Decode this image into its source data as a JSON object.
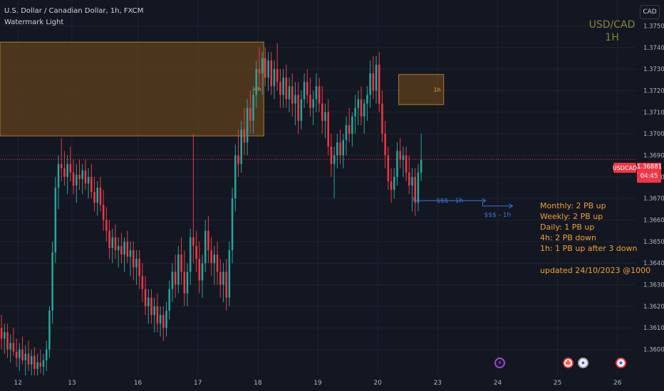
{
  "legend": {
    "symbol_line": "U.S. Dollar / Canadian Dollar, 1h, FXCM",
    "indicator": "Watermark Light"
  },
  "watermark": {
    "line1": "USD/CAD",
    "line2": "1H"
  },
  "currency_button": "CAD",
  "price_tag": {
    "symbol": "USDCAD",
    "price": "1.36881",
    "countdown": "04:45"
  },
  "notes": [
    "Monthly: 2 PB up",
    "Weekly: 2 PB up",
    "Daily: 1 PB up",
    "4h: 2 PB down",
    "1h: 1 PB up after 3 down"
  ],
  "updated": "updated 24/10/2023 @1000",
  "zones": [
    {
      "label": "4h",
      "x_from": 0,
      "x_to": 88,
      "y_from": 1.3699,
      "y_to": 1.37425
    },
    {
      "label": "1h",
      "x_from": 133,
      "x_to": 148,
      "y_from": 1.37135,
      "y_to": 1.37275
    }
  ],
  "liquidity": [
    {
      "label": "$$$ - 1h",
      "x_from": 138,
      "x_to": 162,
      "y": 1.3669
    },
    {
      "label": "$$$ - 1h",
      "x_from": 161,
      "x_to": 171,
      "y": 1.36665
    }
  ],
  "events": [
    {
      "name": "lightning-event",
      "glyph": "⚡"
    },
    {
      "name": "canada-event",
      "glyph": "🍁"
    },
    {
      "name": "us-event",
      "glyph": "★"
    },
    {
      "name": "us-event-2",
      "glyph": "★"
    }
  ],
  "colors": {
    "up": "#26a69a",
    "down": "#f23645",
    "zone": "#7a4f1a",
    "zone_border": "#b07b2c",
    "liquidity": "#3a74d6",
    "notes": "#f0a030",
    "grid": "#1f2330",
    "bg": "#131722"
  },
  "chart_data": {
    "type": "candlestick",
    "title": "U.S. Dollar / Canadian Dollar, 1h, FXCM",
    "x_axis": {
      "labels": [
        "12",
        "13",
        "16",
        "17",
        "18",
        "19",
        "20",
        "23",
        "24",
        "25",
        "26"
      ],
      "positions": [
        6,
        24,
        46,
        66,
        86,
        106,
        126,
        146,
        166,
        186,
        206
      ],
      "range": [
        0,
        212
      ]
    },
    "y_axis": {
      "ticks": [
        "1.37500",
        "1.37400",
        "1.37300",
        "1.37200",
        "1.37100",
        "1.37000",
        "1.36900",
        "1.36800",
        "1.36700",
        "1.36600",
        "1.36500",
        "1.36400",
        "1.36300",
        "1.36200",
        "1.36100",
        "1.36000"
      ],
      "range": [
        1.3588,
        1.3762
      ]
    },
    "last_price": 1.36881,
    "grid": true,
    "candles": [
      [
        1.361,
        1.3616,
        1.36,
        1.3605
      ],
      [
        1.3605,
        1.3612,
        1.3598,
        1.3608
      ],
      [
        1.3608,
        1.3612,
        1.3596,
        1.36
      ],
      [
        1.36,
        1.3607,
        1.3594,
        1.3603
      ],
      [
        1.3603,
        1.361,
        1.3597,
        1.3599
      ],
      [
        1.3599,
        1.3605,
        1.3592,
        1.3596
      ],
      [
        1.3596,
        1.3603,
        1.359,
        1.36
      ],
      [
        1.36,
        1.3606,
        1.3593,
        1.3595
      ],
      [
        1.3595,
        1.3602,
        1.3588,
        1.3598
      ],
      [
        1.3598,
        1.3604,
        1.359,
        1.3593
      ],
      [
        1.3593,
        1.36,
        1.3588,
        1.3597
      ],
      [
        1.3597,
        1.3601,
        1.3588,
        1.3591
      ],
      [
        1.3591,
        1.3598,
        1.3586,
        1.3594
      ],
      [
        1.3594,
        1.36,
        1.3589,
        1.3592
      ],
      [
        1.3592,
        1.3598,
        1.3586,
        1.3595
      ],
      [
        1.3595,
        1.3604,
        1.359,
        1.36
      ],
      [
        1.36,
        1.362,
        1.3596,
        1.3618
      ],
      [
        1.3618,
        1.365,
        1.3612,
        1.3645
      ],
      [
        1.3645,
        1.368,
        1.364,
        1.3675
      ],
      [
        1.3675,
        1.369,
        1.3665,
        1.3686
      ],
      [
        1.3686,
        1.3698,
        1.3678,
        1.3684
      ],
      [
        1.3684,
        1.3692,
        1.3676,
        1.368
      ],
      [
        1.368,
        1.369,
        1.3672,
        1.3686
      ],
      [
        1.3686,
        1.3694,
        1.3678,
        1.3682
      ],
      [
        1.3682,
        1.3688,
        1.3672,
        1.3676
      ],
      [
        1.3676,
        1.3686,
        1.3668,
        1.3681
      ],
      [
        1.3681,
        1.3688,
        1.3674,
        1.3679
      ],
      [
        1.3679,
        1.3686,
        1.3672,
        1.3683
      ],
      [
        1.3683,
        1.3688,
        1.3674,
        1.3677
      ],
      [
        1.3677,
        1.3684,
        1.367,
        1.368
      ],
      [
        1.368,
        1.3686,
        1.367,
        1.3673
      ],
      [
        1.3673,
        1.368,
        1.3664,
        1.3668
      ],
      [
        1.3668,
        1.3678,
        1.3662,
        1.3675
      ],
      [
        1.3675,
        1.368,
        1.3664,
        1.3667
      ],
      [
        1.3667,
        1.3674,
        1.3655,
        1.366
      ],
      [
        1.366,
        1.3666,
        1.365,
        1.3655
      ],
      [
        1.3655,
        1.366,
        1.3642,
        1.3647
      ],
      [
        1.3647,
        1.3656,
        1.364,
        1.3652
      ],
      [
        1.3652,
        1.3658,
        1.3642,
        1.3646
      ],
      [
        1.3646,
        1.3652,
        1.3638,
        1.3648
      ],
      [
        1.3648,
        1.3654,
        1.364,
        1.3644
      ],
      [
        1.3644,
        1.3652,
        1.3636,
        1.365
      ],
      [
        1.365,
        1.3655,
        1.364,
        1.3643
      ],
      [
        1.3643,
        1.365,
        1.3634,
        1.3646
      ],
      [
        1.3646,
        1.365,
        1.3632,
        1.3638
      ],
      [
        1.3638,
        1.3646,
        1.363,
        1.3642
      ],
      [
        1.3642,
        1.3646,
        1.3628,
        1.3634
      ],
      [
        1.3634,
        1.364,
        1.3622,
        1.3628
      ],
      [
        1.3628,
        1.3634,
        1.3616,
        1.362
      ],
      [
        1.362,
        1.3628,
        1.3612,
        1.3624
      ],
      [
        1.3624,
        1.3628,
        1.3612,
        1.3616
      ],
      [
        1.3616,
        1.3624,
        1.3608,
        1.362
      ],
      [
        1.362,
        1.3626,
        1.3608,
        1.3612
      ],
      [
        1.3612,
        1.362,
        1.3606,
        1.3616
      ],
      [
        1.3616,
        1.362,
        1.3604,
        1.361
      ],
      [
        1.361,
        1.3622,
        1.3606,
        1.3618
      ],
      [
        1.3618,
        1.3632,
        1.3614,
        1.3628
      ],
      [
        1.3628,
        1.364,
        1.3622,
        1.3636
      ],
      [
        1.3636,
        1.3644,
        1.3624,
        1.363
      ],
      [
        1.363,
        1.3648,
        1.3626,
        1.3644
      ],
      [
        1.3644,
        1.3652,
        1.363,
        1.3636
      ],
      [
        1.3636,
        1.3646,
        1.362,
        1.3626
      ],
      [
        1.3626,
        1.364,
        1.362,
        1.3636
      ],
      [
        1.3636,
        1.3656,
        1.363,
        1.3652
      ],
      [
        1.3652,
        1.37,
        1.364,
        1.3648
      ],
      [
        1.3648,
        1.3655,
        1.3636,
        1.3642
      ],
      [
        1.3642,
        1.365,
        1.3626,
        1.3632
      ],
      [
        1.3632,
        1.3644,
        1.3624,
        1.364
      ],
      [
        1.364,
        1.366,
        1.3636,
        1.3655
      ],
      [
        1.3655,
        1.3662,
        1.364,
        1.3646
      ],
      [
        1.3646,
        1.3652,
        1.3634,
        1.364
      ],
      [
        1.364,
        1.3648,
        1.363,
        1.3644
      ],
      [
        1.3644,
        1.365,
        1.363,
        1.3636
      ],
      [
        1.3636,
        1.3642,
        1.3624,
        1.363
      ],
      [
        1.363,
        1.364,
        1.3622,
        1.3636
      ],
      [
        1.3636,
        1.3642,
        1.3618,
        1.3624
      ],
      [
        1.3624,
        1.365,
        1.362,
        1.3646
      ],
      [
        1.3646,
        1.3675,
        1.364,
        1.367
      ],
      [
        1.367,
        1.3695,
        1.3664,
        1.369
      ],
      [
        1.369,
        1.3702,
        1.368,
        1.3686
      ],
      [
        1.3686,
        1.3706,
        1.3682,
        1.3702
      ],
      [
        1.3702,
        1.3712,
        1.369,
        1.3696
      ],
      [
        1.3696,
        1.3716,
        1.369,
        1.3712
      ],
      [
        1.3712,
        1.372,
        1.37,
        1.3706
      ],
      [
        1.3706,
        1.3722,
        1.37,
        1.3718
      ],
      [
        1.3718,
        1.3734,
        1.3712,
        1.373
      ],
      [
        1.373,
        1.374,
        1.372,
        1.3728
      ],
      [
        1.3728,
        1.3738,
        1.3718,
        1.3735
      ],
      [
        1.3735,
        1.374,
        1.3722,
        1.3726
      ],
      [
        1.3726,
        1.3738,
        1.372,
        1.3734
      ],
      [
        1.3734,
        1.3738,
        1.3718,
        1.3722
      ],
      [
        1.3722,
        1.3734,
        1.3716,
        1.373
      ],
      [
        1.373,
        1.3742,
        1.372,
        1.3724
      ],
      [
        1.3724,
        1.373,
        1.3712,
        1.3718
      ],
      [
        1.3718,
        1.373,
        1.3712,
        1.3726
      ],
      [
        1.3726,
        1.3732,
        1.3712,
        1.3716
      ],
      [
        1.3716,
        1.3726,
        1.371,
        1.3722
      ],
      [
        1.3722,
        1.3728,
        1.3708,
        1.3714
      ],
      [
        1.3714,
        1.3724,
        1.3704,
        1.3718
      ],
      [
        1.3718,
        1.3724,
        1.37,
        1.3706
      ],
      [
        1.3706,
        1.372,
        1.3702,
        1.3716
      ],
      [
        1.3716,
        1.3728,
        1.3712,
        1.3724
      ],
      [
        1.3724,
        1.373,
        1.3714,
        1.3718
      ],
      [
        1.3718,
        1.3726,
        1.3708,
        1.3712
      ],
      [
        1.3712,
        1.372,
        1.3704,
        1.3716
      ],
      [
        1.3716,
        1.3728,
        1.371,
        1.3722
      ],
      [
        1.3722,
        1.3726,
        1.371,
        1.3714
      ],
      [
        1.3714,
        1.3722,
        1.37,
        1.3706
      ],
      [
        1.3706,
        1.3714,
        1.3698,
        1.371
      ],
      [
        1.371,
        1.3716,
        1.369,
        1.3694
      ],
      [
        1.3694,
        1.37,
        1.368,
        1.3686
      ],
      [
        1.3686,
        1.3694,
        1.367,
        1.369
      ],
      [
        1.369,
        1.37,
        1.3684,
        1.3696
      ],
      [
        1.3696,
        1.3702,
        1.3686,
        1.369
      ],
      [
        1.369,
        1.37,
        1.3684,
        1.3697
      ],
      [
        1.3697,
        1.3708,
        1.369,
        1.3704
      ],
      [
        1.3704,
        1.3712,
        1.3696,
        1.37
      ],
      [
        1.37,
        1.371,
        1.3694,
        1.3708
      ],
      [
        1.3708,
        1.3718,
        1.37,
        1.3712
      ],
      [
        1.3712,
        1.372,
        1.3704,
        1.3716
      ],
      [
        1.3716,
        1.3722,
        1.3704,
        1.3708
      ],
      [
        1.3708,
        1.3716,
        1.37,
        1.3714
      ],
      [
        1.3714,
        1.3722,
        1.3706,
        1.3718
      ],
      [
        1.3718,
        1.3734,
        1.3712,
        1.3728
      ],
      [
        1.3728,
        1.3736,
        1.3716,
        1.372
      ],
      [
        1.372,
        1.3736,
        1.3714,
        1.3732
      ],
      [
        1.3732,
        1.3738,
        1.371,
        1.3714
      ],
      [
        1.3714,
        1.372,
        1.3696,
        1.37
      ],
      [
        1.37,
        1.3706,
        1.3684,
        1.369
      ],
      [
        1.369,
        1.3694,
        1.3674,
        1.3678
      ],
      [
        1.3678,
        1.3684,
        1.3668,
        1.3674
      ],
      [
        1.3674,
        1.3684,
        1.367,
        1.368
      ],
      [
        1.368,
        1.3696,
        1.3676,
        1.3692
      ],
      [
        1.3692,
        1.3698,
        1.3684,
        1.3688
      ],
      [
        1.3688,
        1.3694,
        1.368,
        1.369
      ],
      [
        1.369,
        1.3694,
        1.3678,
        1.3682
      ],
      [
        1.3682,
        1.369,
        1.3672,
        1.3676
      ],
      [
        1.3676,
        1.3684,
        1.3664,
        1.368
      ],
      [
        1.368,
        1.3684,
        1.3662,
        1.3668
      ],
      [
        1.3668,
        1.3686,
        1.3664,
        1.3682
      ],
      [
        1.3682,
        1.37,
        1.3678,
        1.3688
      ]
    ]
  }
}
